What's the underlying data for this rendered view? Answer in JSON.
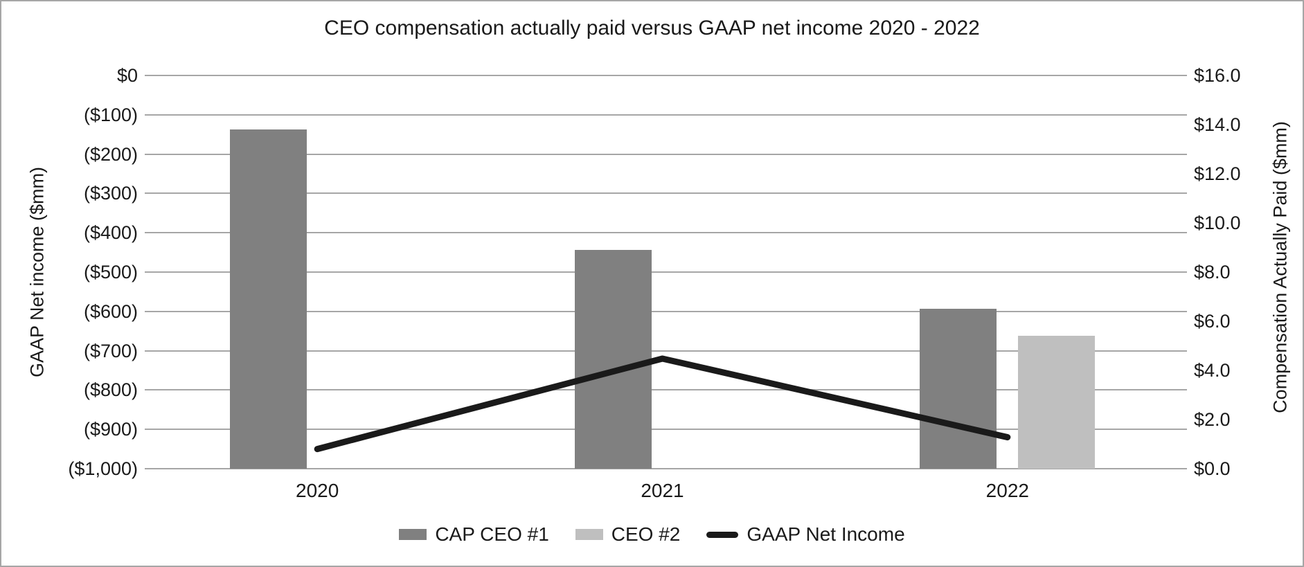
{
  "chart_data": {
    "type": "combo-bar-line",
    "title": "CEO compensation actually paid versus GAAP net income 2020 - 2022",
    "categories": [
      "2020",
      "2021",
      "2022"
    ],
    "bar_series": [
      {
        "name": "CAP CEO #1",
        "axis": "right",
        "color": "#808080",
        "values": [
          13.8,
          8.9,
          6.5
        ]
      },
      {
        "name": "CEO #2",
        "axis": "right",
        "color": "#bfbfbf",
        "values": [
          null,
          null,
          5.4
        ]
      }
    ],
    "line_series": [
      {
        "name": "GAAP Net Income",
        "axis": "left",
        "color": "#1a1a1a",
        "values": [
          -950,
          -720,
          -920
        ]
      }
    ],
    "left_axis": {
      "label": "GAAP Net income ($mm)",
      "min": -1000,
      "max": 0,
      "tick_labels": [
        "$0",
        "($100)",
        "($200)",
        "($300)",
        "($400)",
        "($500)",
        "($600)",
        "($700)",
        "($800)",
        "($900)",
        "($1,000)"
      ]
    },
    "right_axis": {
      "label": "Compensation Actually Paid ($mm)",
      "min": 0,
      "max": 16,
      "tick_labels": [
        "$16.0",
        "$14.0",
        "$12.0",
        "$10.0",
        "$8.0",
        "$6.0",
        "$4.0",
        "$2.0",
        "$0.0"
      ]
    },
    "grid": true,
    "gridline_color": "#a6a6a6",
    "legend_position": "bottom"
  }
}
